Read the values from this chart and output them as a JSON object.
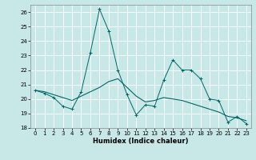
{
  "x": [
    0,
    1,
    2,
    3,
    4,
    5,
    6,
    7,
    8,
    9,
    10,
    11,
    12,
    13,
    14,
    15,
    16,
    17,
    18,
    19,
    20,
    21,
    22,
    23
  ],
  "line1": [
    20.6,
    20.4,
    20.1,
    19.5,
    19.3,
    20.5,
    23.2,
    26.2,
    24.7,
    22.0,
    20.3,
    18.9,
    19.6,
    19.5,
    21.3,
    22.7,
    22.0,
    22.0,
    21.4,
    20.0,
    19.9,
    18.4,
    18.8,
    18.3
  ],
  "line2": [
    20.6,
    20.5,
    20.3,
    20.1,
    19.9,
    20.2,
    20.5,
    20.8,
    21.2,
    21.4,
    20.8,
    20.2,
    19.8,
    19.9,
    20.1,
    20.0,
    19.9,
    19.7,
    19.5,
    19.3,
    19.1,
    18.8,
    18.7,
    18.5
  ],
  "bg_color": "#c8e8e8",
  "line_color": "#006666",
  "grid_color": "#ffffff",
  "xlim": [
    -0.5,
    23.5
  ],
  "ylim": [
    18,
    26.5
  ],
  "yticks": [
    18,
    19,
    20,
    21,
    22,
    23,
    24,
    25,
    26
  ],
  "xticks": [
    0,
    1,
    2,
    3,
    4,
    5,
    6,
    7,
    8,
    9,
    10,
    11,
    12,
    13,
    14,
    15,
    16,
    17,
    18,
    19,
    20,
    21,
    22,
    23
  ],
  "xlabel": "Humidex (Indice chaleur)",
  "tick_fontsize": 5.0,
  "xlabel_fontsize": 6.0
}
